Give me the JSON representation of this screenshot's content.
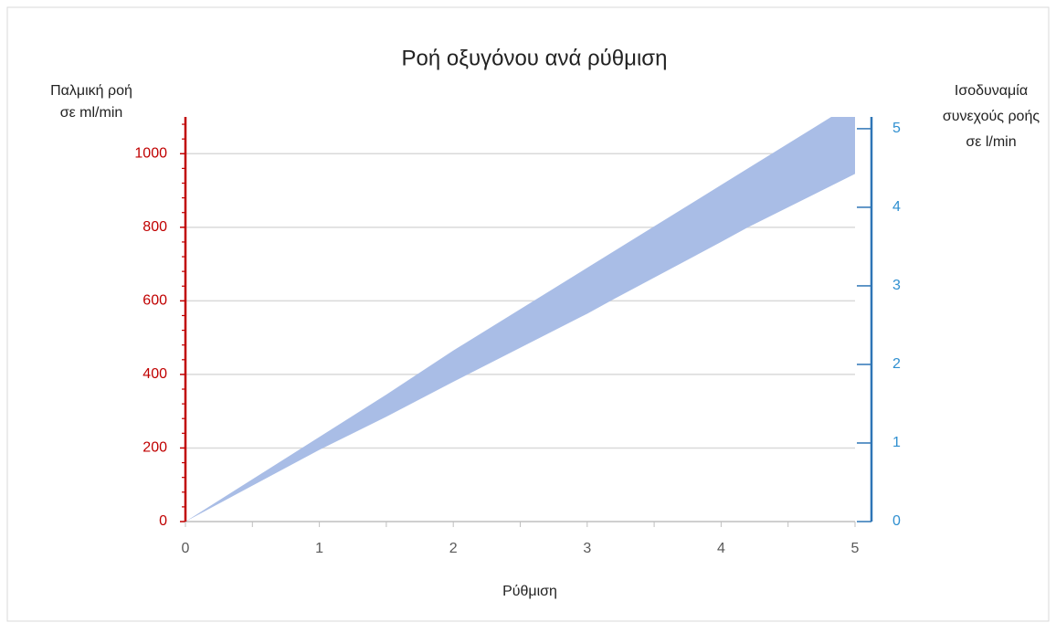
{
  "chart_data": {
    "type": "band",
    "title": "Ροή οξυγόνου ανά ρύθμιση",
    "xlabel": "Ρύθμιση",
    "ylabel": [
      "Παλμική ροή",
      "σε ml/min"
    ],
    "y2label": [
      "Ισοδυναμία",
      "συνεχούς ροής",
      "σε l/min"
    ],
    "x": [
      0,
      1,
      1.5,
      2,
      3,
      3.2,
      4,
      4.2,
      5
    ],
    "series": [
      {
        "name": "upper",
        "color": "#a9bde6",
        "values": [
          0,
          230,
          345,
          465,
          690,
          735,
          915,
          960,
          1140
        ]
      },
      {
        "name": "lower",
        "color": "#a9bde6",
        "values": [
          0,
          195,
          285,
          380,
          565,
          605,
          760,
          800,
          945
        ]
      }
    ],
    "xlim": [
      0,
      5
    ],
    "xticks": [
      0,
      1,
      2,
      3,
      4,
      5
    ],
    "ylim": [
      0,
      1100
    ],
    "yticks": [
      0,
      200,
      400,
      600,
      800,
      1000
    ],
    "y2lim": [
      0,
      5.15
    ],
    "y2ticks": [
      0,
      1,
      2,
      3,
      4,
      5
    ],
    "grid": true,
    "ycolor": "#c00000",
    "y2color": "#2e75b6",
    "y2labelcolor": "#2f8fd0"
  }
}
